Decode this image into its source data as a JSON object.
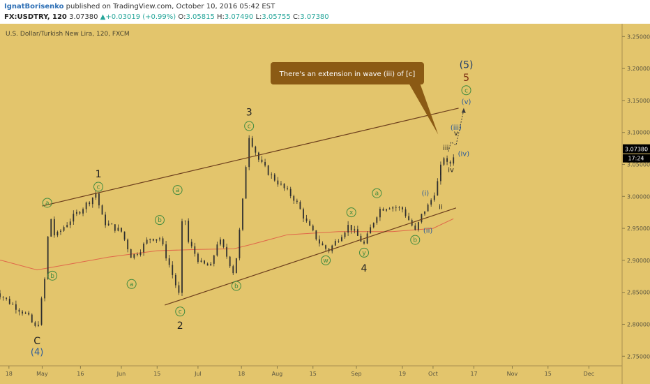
{
  "header": {
    "author": "IgnatBorisenko",
    "published": "published on TradingView.com, October 10, 2016 05:42 EST",
    "symbol": "FX:USDTRY, 120",
    "last": "3.07380",
    "change": "+0.03019 (+0.99%)",
    "open_label": "O:",
    "open": "3.05815",
    "high_label": "H:",
    "high": "3.07490",
    "low_label": "L:",
    "low": "3.05755",
    "close_label": "C:",
    "close": "3.07380"
  },
  "colors": {
    "background": "#e3c56c",
    "candle": "#2f2f2f",
    "ma": "#e0674a",
    "trendline": "#6b3d1c",
    "label_bubble": "#8b5a14",
    "circle_label": "#3f8a3f",
    "blue_label": "#2a5a9a",
    "ink": "#222222",
    "price_tag": "#000000",
    "arrow": "#3a3a3a"
  },
  "chart_data": {
    "type": "candlestick",
    "title": "U.S. Dollar/Turkish New Lira, 120, FXCM",
    "grid": false,
    "y_axis": {
      "ticks": [
        "3.25000",
        "3.20000",
        "3.15000",
        "3.10000",
        "3.05000",
        "3.00000",
        "2.95000",
        "2.90000",
        "2.85000",
        "2.80000",
        "2.75000"
      ],
      "range": [
        2.735,
        3.27
      ]
    },
    "x_axis": {
      "ticks": [
        "18",
        "May",
        "16",
        "Jun",
        "15",
        "Jul",
        "18",
        "Aug",
        "15",
        "Sep",
        "19",
        "Oct",
        "17",
        "Nov",
        "15",
        "Dec"
      ],
      "range_days": [
        -16.5,
        227
      ]
    },
    "price_tag": {
      "value": 3.0738,
      "label": "3.07380",
      "countdown": "17:24"
    },
    "annotation": {
      "text": "There's an extension in wave (iii) of [c]"
    },
    "path_points": [
      {
        "date": "2016-04-12",
        "price": 2.855
      },
      {
        "date": "2016-04-18",
        "price": 2.835
      },
      {
        "date": "2016-04-25",
        "price": 2.815
      },
      {
        "date": "2016-04-29",
        "price": 2.79
      },
      {
        "date": "2016-05-02",
        "price": 2.87
      },
      {
        "date": "2016-05-04",
        "price": 2.975
      },
      {
        "date": "2016-05-06",
        "price": 2.935
      },
      {
        "date": "2016-05-10",
        "price": 2.955
      },
      {
        "date": "2016-05-15",
        "price": 2.975
      },
      {
        "date": "2016-05-20",
        "price": 2.995
      },
      {
        "date": "2016-05-22",
        "price": 3.005
      },
      {
        "date": "2016-05-25",
        "price": 2.96
      },
      {
        "date": "2016-06-01",
        "price": 2.945
      },
      {
        "date": "2016-06-05",
        "price": 2.905
      },
      {
        "date": "2016-06-08",
        "price": 2.915
      },
      {
        "date": "2016-06-12",
        "price": 2.935
      },
      {
        "date": "2016-06-16",
        "price": 2.935
      },
      {
        "date": "2016-06-20",
        "price": 2.89
      },
      {
        "date": "2016-06-24",
        "price": 2.84
      },
      {
        "date": "2016-06-25",
        "price": 2.995
      },
      {
        "date": "2016-06-27",
        "price": 2.93
      },
      {
        "date": "2016-07-02",
        "price": 2.895
      },
      {
        "date": "2016-07-06",
        "price": 2.89
      },
      {
        "date": "2016-07-09",
        "price": 2.935
      },
      {
        "date": "2016-07-13",
        "price": 2.9
      },
      {
        "date": "2016-07-15",
        "price": 2.88
      },
      {
        "date": "2016-07-16",
        "price": 2.905
      },
      {
        "date": "2016-07-18",
        "price": 2.97
      },
      {
        "date": "2016-07-20",
        "price": 3.06
      },
      {
        "date": "2016-07-21",
        "price": 3.095
      },
      {
        "date": "2016-07-25",
        "price": 3.055
      },
      {
        "date": "2016-07-29",
        "price": 3.035
      },
      {
        "date": "2016-08-03",
        "price": 3.015
      },
      {
        "date": "2016-08-08",
        "price": 2.995
      },
      {
        "date": "2016-08-13",
        "price": 2.955
      },
      {
        "date": "2016-08-18",
        "price": 2.925
      },
      {
        "date": "2016-08-21",
        "price": 2.915
      },
      {
        "date": "2016-08-25",
        "price": 2.935
      },
      {
        "date": "2016-08-29",
        "price": 2.955
      },
      {
        "date": "2016-09-02",
        "price": 2.935
      },
      {
        "date": "2016-09-04",
        "price": 2.925
      },
      {
        "date": "2016-09-07",
        "price": 2.955
      },
      {
        "date": "2016-09-10",
        "price": 2.98
      },
      {
        "date": "2016-09-14",
        "price": 2.985
      },
      {
        "date": "2016-09-19",
        "price": 2.98
      },
      {
        "date": "2016-09-22",
        "price": 2.96
      },
      {
        "date": "2016-09-24",
        "price": 2.945
      },
      {
        "date": "2016-09-27",
        "price": 2.975
      },
      {
        "date": "2016-09-29",
        "price": 2.985
      },
      {
        "date": "2016-10-01",
        "price": 3.0
      },
      {
        "date": "2016-10-03",
        "price": 3.025
      },
      {
        "date": "2016-10-05",
        "price": 3.065
      },
      {
        "date": "2016-10-07",
        "price": 3.045
      },
      {
        "date": "2016-10-10",
        "price": 3.074
      }
    ],
    "ma_points": [
      {
        "date": "2016-04-01",
        "price": 2.91
      },
      {
        "date": "2016-04-15",
        "price": 2.9
      },
      {
        "date": "2016-04-29",
        "price": 2.885
      },
      {
        "date": "2016-05-13",
        "price": 2.895
      },
      {
        "date": "2016-05-27",
        "price": 2.905
      },
      {
        "date": "2016-06-15",
        "price": 2.915
      },
      {
        "date": "2016-07-01",
        "price": 2.917
      },
      {
        "date": "2016-07-15",
        "price": 2.918
      },
      {
        "date": "2016-07-22",
        "price": 2.925
      },
      {
        "date": "2016-08-05",
        "price": 2.94
      },
      {
        "date": "2016-08-25",
        "price": 2.945
      },
      {
        "date": "2016-09-15",
        "price": 2.945
      },
      {
        "date": "2016-10-01",
        "price": 2.95
      },
      {
        "date": "2016-10-09",
        "price": 2.965
      }
    ],
    "trendlines": [
      {
        "name": "upper-channel",
        "from": {
          "date": "2016-05-01",
          "price": 2.985
        },
        "to": {
          "date": "2016-10-11",
          "price": 3.138
        }
      },
      {
        "name": "lower-channel",
        "from": {
          "date": "2016-06-18",
          "price": 2.83
        },
        "to": {
          "date": "2016-10-10",
          "price": 2.982
        }
      }
    ],
    "projection": [
      {
        "date": "2016-10-07",
        "price": 3.07
      },
      {
        "date": "2016-10-08",
        "price": 3.085
      },
      {
        "date": "2016-10-10",
        "price": 3.08
      },
      {
        "date": "2016-10-13",
        "price": 3.135
      }
    ],
    "wave_labels": [
      {
        "text": "C",
        "date": "2016-04-29",
        "price": 2.774,
        "style": "dark"
      },
      {
        "text": "(4)",
        "date": "2016-04-29",
        "price": 2.757,
        "style": "blue"
      },
      {
        "text": "a",
        "date": "2016-05-03",
        "price": 2.99,
        "style": "circle"
      },
      {
        "text": "b",
        "date": "2016-05-05",
        "price": 2.876,
        "style": "circle"
      },
      {
        "text": "c",
        "date": "2016-05-23",
        "price": 3.015,
        "style": "circle"
      },
      {
        "text": "1",
        "date": "2016-05-23",
        "price": 3.035,
        "style": "dark"
      },
      {
        "text": "a",
        "date": "2016-06-05",
        "price": 2.863,
        "style": "circle"
      },
      {
        "text": "b",
        "date": "2016-06-16",
        "price": 2.963,
        "style": "circle"
      },
      {
        "text": "a",
        "date": "2016-06-23",
        "price": 3.01,
        "style": "circle"
      },
      {
        "text": "c",
        "date": "2016-06-24",
        "price": 2.82,
        "style": "circle"
      },
      {
        "text": "2",
        "date": "2016-06-24",
        "price": 2.798,
        "style": "dark"
      },
      {
        "text": "b",
        "date": "2016-07-16",
        "price": 2.86,
        "style": "circle"
      },
      {
        "text": "c",
        "date": "2016-07-21",
        "price": 3.11,
        "style": "circle"
      },
      {
        "text": "3",
        "date": "2016-07-21",
        "price": 3.132,
        "style": "dark"
      },
      {
        "text": "w",
        "date": "2016-08-20",
        "price": 2.9,
        "style": "circle"
      },
      {
        "text": "x",
        "date": "2016-08-30",
        "price": 2.975,
        "style": "circle"
      },
      {
        "text": "a",
        "date": "2016-09-09",
        "price": 3.005,
        "style": "circle"
      },
      {
        "text": "y",
        "date": "2016-09-04",
        "price": 2.912,
        "style": "circle"
      },
      {
        "text": "4",
        "date": "2016-09-04",
        "price": 2.888,
        "style": "dark"
      },
      {
        "text": "b",
        "date": "2016-09-24",
        "price": 2.932,
        "style": "circle"
      },
      {
        "text": "(i)",
        "date": "2016-09-28",
        "price": 3.005,
        "style": "blue-small"
      },
      {
        "text": "(ii)",
        "date": "2016-09-29",
        "price": 2.947,
        "style": "blue-small"
      },
      {
        "text": "i",
        "date": "2016-10-04",
        "price": 3.037,
        "style": "dark-small"
      },
      {
        "text": "ii",
        "date": "2016-10-04",
        "price": 2.984,
        "style": "dark-small"
      },
      {
        "text": "iii",
        "date": "2016-10-06",
        "price": 3.076,
        "style": "dark-small"
      },
      {
        "text": "iv",
        "date": "2016-10-08",
        "price": 3.042,
        "style": "dark-small"
      },
      {
        "text": "v",
        "date": "2016-10-10",
        "price": 3.099,
        "style": "dark-small"
      },
      {
        "text": "(iii)",
        "date": "2016-10-10",
        "price": 3.108,
        "style": "blue-small"
      },
      {
        "text": "(iv)",
        "date": "2016-10-13",
        "price": 3.067,
        "style": "blue-small"
      },
      {
        "text": "(v)",
        "date": "2016-10-14",
        "price": 3.148,
        "style": "blue-small"
      },
      {
        "text": "c",
        "date": "2016-10-14",
        "price": 3.166,
        "style": "circle"
      },
      {
        "text": "5",
        "date": "2016-10-14",
        "price": 3.186,
        "style": "brown"
      },
      {
        "text": "(5)",
        "date": "2016-10-14",
        "price": 3.206,
        "style": "blue-large"
      }
    ]
  }
}
